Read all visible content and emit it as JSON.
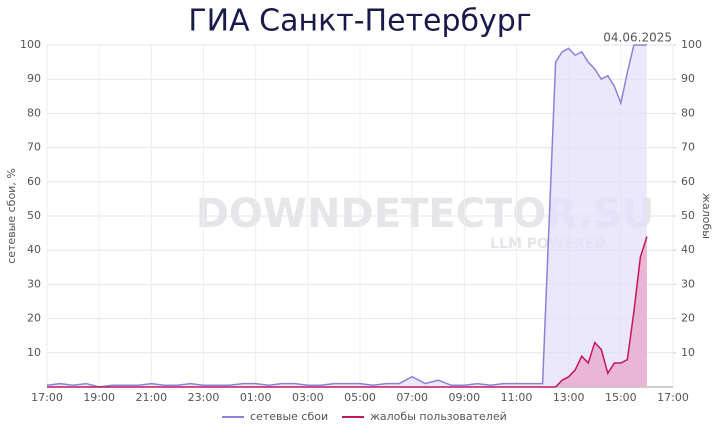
{
  "chart_data": {
    "type": "line",
    "title": "ГИА Санкт-Петербург",
    "date": "04.06.2025",
    "watermark": "DOWNDETECTOR.SU",
    "watermark_sub": "LLM POWERED",
    "y_label": "сетевые сбои, %",
    "y2_label": "жалобы",
    "x": [
      17,
      17.5,
      18,
      18.5,
      19,
      19.5,
      20,
      20.5,
      21,
      21.5,
      22,
      22.5,
      23,
      23.5,
      24,
      24.5,
      25,
      25.5,
      26,
      26.5,
      27,
      27.5,
      28,
      28.5,
      29,
      29.5,
      30,
      30.5,
      31,
      31.5,
      32,
      32.5,
      33,
      33.5,
      34,
      34.5,
      35,
      35.5,
      36,
      36.25,
      36.5,
      36.75,
      37,
      37.25,
      37.5,
      37.75,
      38,
      38.25,
      38.5,
      38.75,
      39,
      39.25,
      39.5,
      39.75,
      40
    ],
    "series": [
      {
        "name": "сетевые сбои",
        "color": "#8c80d9",
        "fill": "#e4defb",
        "values": [
          0.5,
          1,
          0.5,
          1,
          0,
          0.5,
          0.5,
          0.5,
          1,
          0.5,
          0.5,
          1,
          0.5,
          0.5,
          0.5,
          1,
          1,
          0.5,
          1,
          1,
          0.5,
          0.5,
          1,
          1,
          1,
          0.5,
          1,
          1,
          3,
          1,
          2,
          0.5,
          0.5,
          1,
          0.5,
          1,
          1,
          1,
          1,
          48,
          95,
          98,
          99,
          97,
          98,
          95,
          93,
          90,
          91,
          88,
          83,
          92,
          100,
          100,
          100
        ]
      },
      {
        "name": "жалобы пользователей",
        "color": "#c2185b",
        "fill": "#e8a6c8",
        "axis": "y2",
        "values": [
          0,
          0,
          0,
          0,
          0,
          0,
          0,
          0,
          0,
          0,
          0,
          0,
          0,
          0,
          0,
          0,
          0,
          0,
          0,
          0,
          0,
          0,
          0,
          0,
          0,
          0,
          0,
          0,
          0,
          0,
          0,
          0,
          0,
          0,
          0,
          0,
          0,
          0,
          0,
          0,
          0,
          2,
          3,
          5,
          9,
          7,
          13,
          11,
          4,
          7,
          7,
          8,
          22,
          38,
          44
        ]
      }
    ],
    "xlim": [
      17,
      41
    ],
    "xticks": [
      {
        "value": 17,
        "label": "17:00"
      },
      {
        "value": 19,
        "label": "19:00"
      },
      {
        "value": 21,
        "label": "21:00"
      },
      {
        "value": 23,
        "label": "23:00"
      },
      {
        "value": 25,
        "label": "01:00"
      },
      {
        "value": 27,
        "label": "03:00"
      },
      {
        "value": 29,
        "label": "05:00"
      },
      {
        "value": 31,
        "label": "07:00"
      },
      {
        "value": 33,
        "label": "09:00"
      },
      {
        "value": 35,
        "label": "11:00"
      },
      {
        "value": 37,
        "label": "13:00"
      },
      {
        "value": 39,
        "label": "15:00"
      },
      {
        "value": 41,
        "label": "17:00"
      }
    ],
    "ylim": [
      0,
      100
    ],
    "yticks": [
      10,
      20,
      30,
      40,
      50,
      60,
      70,
      80,
      90,
      100
    ],
    "y2lim": [
      0,
      100
    ],
    "y2ticks": [
      10,
      20,
      30,
      40,
      50,
      60,
      70,
      80,
      90,
      100
    ],
    "grid": true
  }
}
